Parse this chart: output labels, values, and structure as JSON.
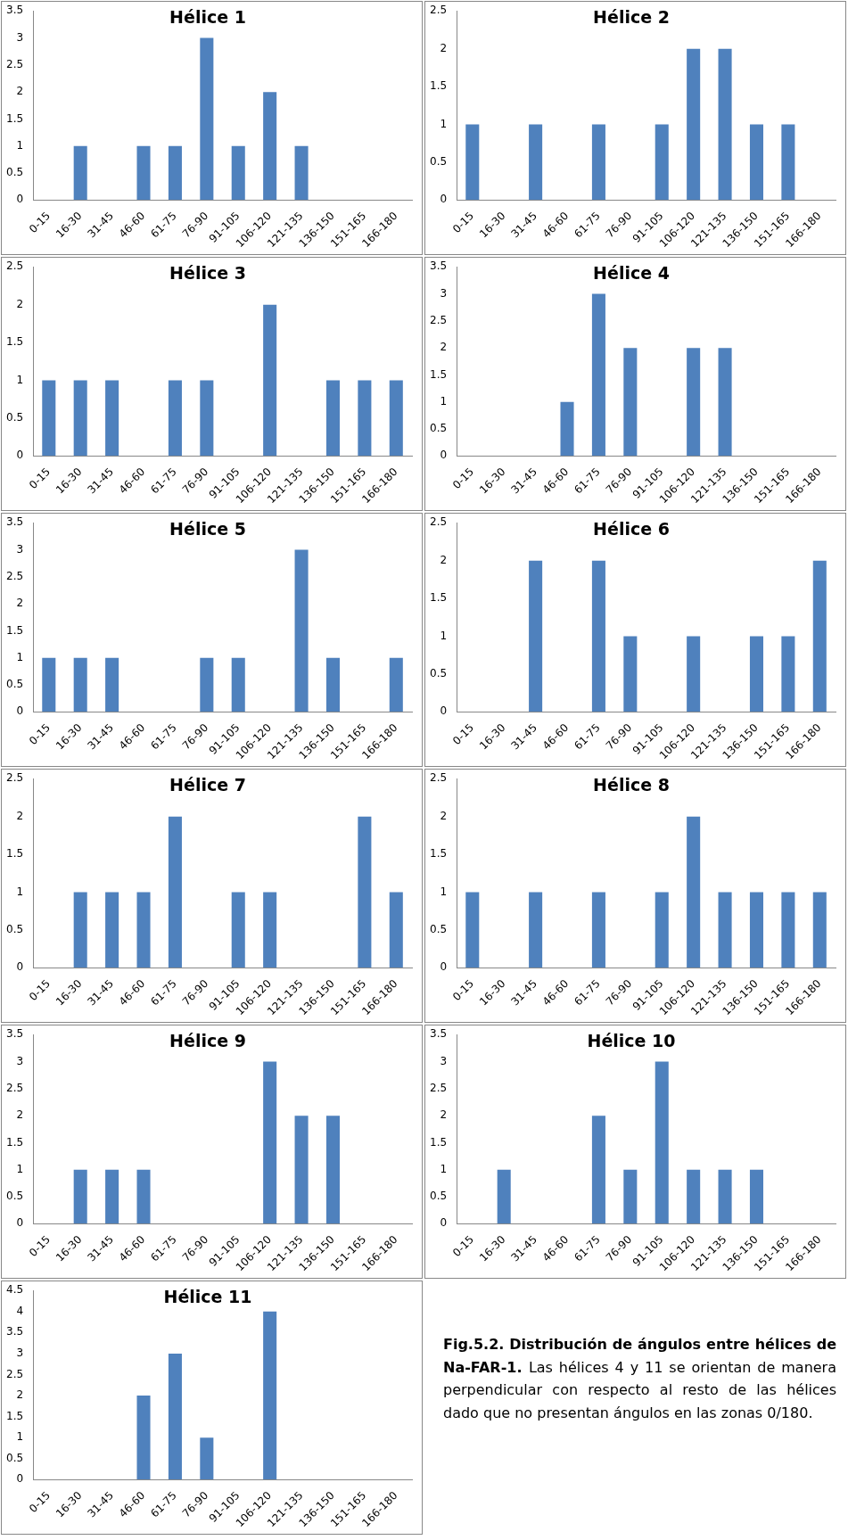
{
  "chart_data": [
    {
      "type": "bar",
      "title": "Hélice 1",
      "categories": [
        "0-15",
        "16-30",
        "31-45",
        "46-60",
        "61-75",
        "76-90",
        "91-105",
        "106-120",
        "121-135",
        "136-150",
        "151-165",
        "166-180"
      ],
      "values": [
        0,
        1,
        0,
        1,
        1,
        3,
        1,
        2,
        1,
        0,
        0,
        0
      ],
      "color": "#4f81bd",
      "ylim": [
        0,
        3.5
      ],
      "yticks": [
        0,
        0.5,
        1,
        1.5,
        2,
        2.5,
        3,
        3.5
      ],
      "grid": false
    },
    {
      "type": "bar",
      "title": "Hélice 2",
      "categories": [
        "0-15",
        "16-30",
        "31-45",
        "46-60",
        "61-75",
        "76-90",
        "91-105",
        "106-120",
        "121-135",
        "136-150",
        "151-165",
        "166-180"
      ],
      "values": [
        1,
        0,
        1,
        0,
        1,
        0,
        1,
        2,
        2,
        1,
        1,
        0
      ],
      "color": "#4f81bd",
      "ylim": [
        0,
        2.5
      ],
      "yticks": [
        0,
        0.5,
        1,
        1.5,
        2,
        2.5
      ],
      "grid": false
    },
    {
      "type": "bar",
      "title": "Hélice 3",
      "categories": [
        "0-15",
        "16-30",
        "31-45",
        "46-60",
        "61-75",
        "76-90",
        "91-105",
        "106-120",
        "121-135",
        "136-150",
        "151-165",
        "166-180"
      ],
      "values": [
        1,
        1,
        1,
        0,
        1,
        1,
        0,
        2,
        0,
        1,
        1,
        1
      ],
      "color": "#4f81bd",
      "ylim": [
        0,
        2.5
      ],
      "yticks": [
        0,
        0.5,
        1,
        1.5,
        2,
        2.5
      ],
      "grid": false
    },
    {
      "type": "bar",
      "title": "Hélice 4",
      "categories": [
        "0-15",
        "16-30",
        "31-45",
        "46-60",
        "61-75",
        "76-90",
        "91-105",
        "106-120",
        "121-135",
        "136-150",
        "151-165",
        "166-180"
      ],
      "values": [
        0,
        0,
        0,
        1,
        3,
        2,
        0,
        2,
        2,
        0,
        0,
        0
      ],
      "color": "#4f81bd",
      "ylim": [
        0,
        3.5
      ],
      "yticks": [
        0,
        0.5,
        1,
        1.5,
        2,
        2.5,
        3,
        3.5
      ],
      "grid": false
    },
    {
      "type": "bar",
      "title": "Hélice 5",
      "categories": [
        "0-15",
        "16-30",
        "31-45",
        "46-60",
        "61-75",
        "76-90",
        "91-105",
        "106-120",
        "121-135",
        "136-150",
        "151-165",
        "166-180"
      ],
      "values": [
        1,
        1,
        1,
        0,
        0,
        1,
        1,
        0,
        3,
        1,
        0,
        1
      ],
      "color": "#4f81bd",
      "ylim": [
        0,
        3.5
      ],
      "yticks": [
        0,
        0.5,
        1,
        1.5,
        2,
        2.5,
        3,
        3.5
      ],
      "grid": false
    },
    {
      "type": "bar",
      "title": "Hélice 6",
      "categories": [
        "0-15",
        "16-30",
        "31-45",
        "46-60",
        "61-75",
        "76-90",
        "91-105",
        "106-120",
        "121-135",
        "136-150",
        "151-165",
        "166-180"
      ],
      "values": [
        0,
        0,
        2,
        0,
        2,
        1,
        0,
        1,
        0,
        1,
        1,
        2
      ],
      "color": "#4f81bd",
      "ylim": [
        0,
        2.5
      ],
      "yticks": [
        0,
        0.5,
        1,
        1.5,
        2,
        2.5
      ],
      "grid": false
    },
    {
      "type": "bar",
      "title": "Hélice 7",
      "categories": [
        "0-15",
        "16-30",
        "31-45",
        "46-60",
        "61-75",
        "76-90",
        "91-105",
        "106-120",
        "121-135",
        "136-150",
        "151-165",
        "166-180"
      ],
      "values": [
        0,
        1,
        1,
        1,
        2,
        0,
        1,
        1,
        0,
        0,
        2,
        1
      ],
      "color": "#4f81bd",
      "ylim": [
        0,
        2.5
      ],
      "yticks": [
        0,
        0.5,
        1,
        1.5,
        2,
        2.5
      ],
      "grid": false
    },
    {
      "type": "bar",
      "title": "Hélice 8",
      "categories": [
        "0-15",
        "16-30",
        "31-45",
        "46-60",
        "61-75",
        "76-90",
        "91-105",
        "106-120",
        "121-135",
        "136-150",
        "151-165",
        "166-180"
      ],
      "values": [
        1,
        0,
        1,
        0,
        1,
        0,
        1,
        2,
        1,
        1,
        1,
        1
      ],
      "color": "#4f81bd",
      "ylim": [
        0,
        2.5
      ],
      "yticks": [
        0,
        0.5,
        1,
        1.5,
        2,
        2.5
      ],
      "grid": false
    },
    {
      "type": "bar",
      "title": "Hélice 9",
      "categories": [
        "0-15",
        "16-30",
        "31-45",
        "46-60",
        "61-75",
        "76-90",
        "91-105",
        "106-120",
        "121-135",
        "136-150",
        "151-165",
        "166-180"
      ],
      "values": [
        0,
        1,
        1,
        1,
        0,
        0,
        0,
        3,
        2,
        2,
        0,
        0
      ],
      "color": "#4f81bd",
      "ylim": [
        0,
        3.5
      ],
      "yticks": [
        0,
        0.5,
        1,
        1.5,
        2,
        2.5,
        3,
        3.5
      ],
      "grid": false
    },
    {
      "type": "bar",
      "title": "Hélice 10",
      "categories": [
        "0-15",
        "16-30",
        "31-45",
        "46-60",
        "61-75",
        "76-90",
        "91-105",
        "106-120",
        "121-135",
        "136-150",
        "151-165",
        "166-180"
      ],
      "values": [
        0,
        1,
        0,
        0,
        2,
        1,
        3,
        1,
        1,
        1,
        0,
        0
      ],
      "color": "#4f81bd",
      "ylim": [
        0,
        3.5
      ],
      "yticks": [
        0,
        0.5,
        1,
        1.5,
        2,
        2.5,
        3,
        3.5
      ],
      "grid": false
    },
    {
      "type": "bar",
      "title": "Hélice 11",
      "categories": [
        "0-15",
        "16-30",
        "31-45",
        "46-60",
        "61-75",
        "76-90",
        "91-105",
        "106-120",
        "121-135",
        "136-150",
        "151-165",
        "166-180"
      ],
      "values": [
        0,
        0,
        0,
        2,
        3,
        1,
        0,
        4,
        0,
        0,
        0,
        0
      ],
      "color": "#4f81bd",
      "ylim": [
        0,
        4.5
      ],
      "yticks": [
        0,
        0.5,
        1,
        1.5,
        2,
        2.5,
        3,
        3.5,
        4,
        4.5
      ],
      "grid": false
    },
    {
      "type": "other",
      "annotations": [
        "Fig.5.2. Distribución de ángulos entre hélices de Na-FAR-1.",
        "Las hélices 4 y 11 se orientan de manera perpendicular con respecto al resto de las hélices dado que no presentan ángulos en las zonas 0/180."
      ]
    }
  ]
}
